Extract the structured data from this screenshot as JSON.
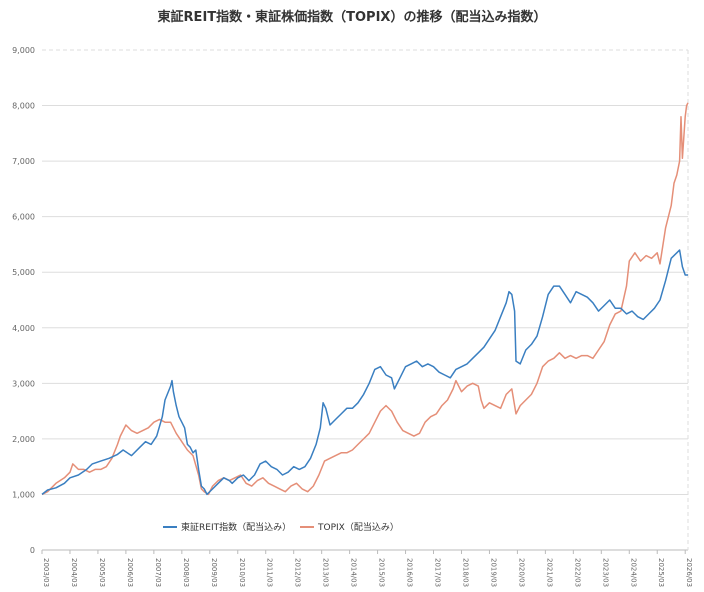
{
  "chart_data": {
    "type": "line",
    "title": "東証REIT指数・東証株価指数（TOPIX）の推移（配当込み指数）",
    "ylim": [
      0,
      9000
    ],
    "y_ticks": [
      "0",
      "1,000",
      "2,000",
      "3,000",
      "4,000",
      "5,000",
      "6,000",
      "7,000",
      "8,000",
      "9,000"
    ],
    "x_ticks": [
      "2003/03",
      "2004/03",
      "2005/03",
      "2006/03",
      "2007/03",
      "2008/03",
      "2009/03",
      "2010/03",
      "2011/03",
      "2012/03",
      "2013/03",
      "2014/03",
      "2015/03",
      "2016/03",
      "2017/03",
      "2018/03",
      "2019/03",
      "2020/03",
      "2021/03",
      "2022/03",
      "2023/03",
      "2024/03",
      "2025/03",
      "2026/03"
    ],
    "grid": true,
    "legend_position": "bottom-center",
    "series": [
      {
        "name": "東証REIT指数（配当込み）",
        "color": "#3a7fc1",
        "points": [
          [
            2003.2,
            1000
          ],
          [
            2003.4,
            1080
          ],
          [
            2003.7,
            1120
          ],
          [
            2004.0,
            1200
          ],
          [
            2004.2,
            1300
          ],
          [
            2004.5,
            1350
          ],
          [
            2004.8,
            1450
          ],
          [
            2005.0,
            1550
          ],
          [
            2005.3,
            1600
          ],
          [
            2005.6,
            1650
          ],
          [
            2005.9,
            1720
          ],
          [
            2006.1,
            1800
          ],
          [
            2006.4,
            1700
          ],
          [
            2006.7,
            1850
          ],
          [
            2006.9,
            1950
          ],
          [
            2007.1,
            1900
          ],
          [
            2007.3,
            2050
          ],
          [
            2007.5,
            2400
          ],
          [
            2007.6,
            2700
          ],
          [
            2007.8,
            2950
          ],
          [
            2007.85,
            3050
          ],
          [
            2007.9,
            2850
          ],
          [
            2008.0,
            2600
          ],
          [
            2008.1,
            2400
          ],
          [
            2008.2,
            2300
          ],
          [
            2008.3,
            2200
          ],
          [
            2008.4,
            1900
          ],
          [
            2008.5,
            1850
          ],
          [
            2008.6,
            1750
          ],
          [
            2008.7,
            1800
          ],
          [
            2008.8,
            1450
          ],
          [
            2008.9,
            1150
          ],
          [
            2009.0,
            1100
          ],
          [
            2009.1,
            1000
          ],
          [
            2009.3,
            1100
          ],
          [
            2009.5,
            1200
          ],
          [
            2009.7,
            1300
          ],
          [
            2009.9,
            1250
          ],
          [
            2010.0,
            1200
          ],
          [
            2010.2,
            1300
          ],
          [
            2010.4,
            1350
          ],
          [
            2010.6,
            1250
          ],
          [
            2010.8,
            1350
          ],
          [
            2011.0,
            1550
          ],
          [
            2011.2,
            1600
          ],
          [
            2011.4,
            1500
          ],
          [
            2011.6,
            1450
          ],
          [
            2011.8,
            1350
          ],
          [
            2012.0,
            1400
          ],
          [
            2012.2,
            1500
          ],
          [
            2012.4,
            1450
          ],
          [
            2012.6,
            1500
          ],
          [
            2012.8,
            1650
          ],
          [
            2013.0,
            1900
          ],
          [
            2013.15,
            2200
          ],
          [
            2013.25,
            2650
          ],
          [
            2013.35,
            2550
          ],
          [
            2013.5,
            2250
          ],
          [
            2013.7,
            2350
          ],
          [
            2013.9,
            2450
          ],
          [
            2014.1,
            2550
          ],
          [
            2014.3,
            2550
          ],
          [
            2014.5,
            2650
          ],
          [
            2014.7,
            2800
          ],
          [
            2014.9,
            3000
          ],
          [
            2015.1,
            3250
          ],
          [
            2015.3,
            3300
          ],
          [
            2015.5,
            3150
          ],
          [
            2015.7,
            3100
          ],
          [
            2015.8,
            2900
          ],
          [
            2016.0,
            3100
          ],
          [
            2016.2,
            3300
          ],
          [
            2016.4,
            3350
          ],
          [
            2016.6,
            3400
          ],
          [
            2016.8,
            3300
          ],
          [
            2017.0,
            3350
          ],
          [
            2017.2,
            3300
          ],
          [
            2017.4,
            3200
          ],
          [
            2017.6,
            3150
          ],
          [
            2017.8,
            3100
          ],
          [
            2018.0,
            3250
          ],
          [
            2018.2,
            3300
          ],
          [
            2018.4,
            3350
          ],
          [
            2018.6,
            3450
          ],
          [
            2018.8,
            3550
          ],
          [
            2019.0,
            3650
          ],
          [
            2019.2,
            3800
          ],
          [
            2019.4,
            3950
          ],
          [
            2019.6,
            4200
          ],
          [
            2019.8,
            4450
          ],
          [
            2019.9,
            4650
          ],
          [
            2020.0,
            4600
          ],
          [
            2020.1,
            4300
          ],
          [
            2020.15,
            3400
          ],
          [
            2020.3,
            3350
          ],
          [
            2020.5,
            3600
          ],
          [
            2020.7,
            3700
          ],
          [
            2020.9,
            3850
          ],
          [
            2021.1,
            4200
          ],
          [
            2021.3,
            4600
          ],
          [
            2021.5,
            4750
          ],
          [
            2021.7,
            4750
          ],
          [
            2021.9,
            4600
          ],
          [
            2022.1,
            4450
          ],
          [
            2022.3,
            4650
          ],
          [
            2022.5,
            4600
          ],
          [
            2022.7,
            4550
          ],
          [
            2022.9,
            4450
          ],
          [
            2023.1,
            4300
          ],
          [
            2023.3,
            4400
          ],
          [
            2023.5,
            4500
          ],
          [
            2023.7,
            4350
          ],
          [
            2023.9,
            4350
          ],
          [
            2024.1,
            4250
          ],
          [
            2024.3,
            4300
          ],
          [
            2024.5,
            4200
          ],
          [
            2024.7,
            4150
          ],
          [
            2024.9,
            4250
          ],
          [
            2025.1,
            4350
          ],
          [
            2025.3,
            4500
          ],
          [
            2025.5,
            4850
          ],
          [
            2025.7,
            5250
          ],
          [
            2025.9,
            5350
          ],
          [
            2026.0,
            5400
          ],
          [
            2026.1,
            5100
          ],
          [
            2026.2,
            4950
          ],
          [
            2026.3,
            4950
          ]
        ]
      },
      {
        "name": "TOPIX（配当込み）",
        "color": "#e58f78",
        "points": [
          [
            2003.2,
            1000
          ],
          [
            2003.4,
            1050
          ],
          [
            2003.7,
            1200
          ],
          [
            2004.0,
            1300
          ],
          [
            2004.2,
            1400
          ],
          [
            2004.3,
            1550
          ],
          [
            2004.5,
            1450
          ],
          [
            2004.7,
            1450
          ],
          [
            2004.9,
            1400
          ],
          [
            2005.1,
            1450
          ],
          [
            2005.3,
            1450
          ],
          [
            2005.5,
            1500
          ],
          [
            2005.7,
            1650
          ],
          [
            2005.9,
            1900
          ],
          [
            2006.0,
            2050
          ],
          [
            2006.2,
            2250
          ],
          [
            2006.4,
            2150
          ],
          [
            2006.6,
            2100
          ],
          [
            2006.8,
            2150
          ],
          [
            2007.0,
            2200
          ],
          [
            2007.2,
            2300
          ],
          [
            2007.4,
            2350
          ],
          [
            2007.6,
            2300
          ],
          [
            2007.8,
            2300
          ],
          [
            2008.0,
            2100
          ],
          [
            2008.2,
            1950
          ],
          [
            2008.4,
            1800
          ],
          [
            2008.6,
            1700
          ],
          [
            2008.8,
            1350
          ],
          [
            2008.9,
            1100
          ],
          [
            2009.0,
            1050
          ],
          [
            2009.15,
            1000
          ],
          [
            2009.3,
            1150
          ],
          [
            2009.5,
            1250
          ],
          [
            2009.7,
            1300
          ],
          [
            2009.9,
            1250
          ],
          [
            2010.1,
            1300
          ],
          [
            2010.3,
            1350
          ],
          [
            2010.5,
            1200
          ],
          [
            2010.7,
            1150
          ],
          [
            2010.9,
            1250
          ],
          [
            2011.1,
            1300
          ],
          [
            2011.3,
            1200
          ],
          [
            2011.5,
            1150
          ],
          [
            2011.7,
            1100
          ],
          [
            2011.9,
            1050
          ],
          [
            2012.1,
            1150
          ],
          [
            2012.3,
            1200
          ],
          [
            2012.5,
            1100
          ],
          [
            2012.7,
            1050
          ],
          [
            2012.9,
            1150
          ],
          [
            2013.1,
            1350
          ],
          [
            2013.3,
            1600
          ],
          [
            2013.5,
            1650
          ],
          [
            2013.7,
            1700
          ],
          [
            2013.9,
            1750
          ],
          [
            2014.1,
            1750
          ],
          [
            2014.3,
            1800
          ],
          [
            2014.5,
            1900
          ],
          [
            2014.7,
            2000
          ],
          [
            2014.9,
            2100
          ],
          [
            2015.1,
            2300
          ],
          [
            2015.3,
            2500
          ],
          [
            2015.5,
            2600
          ],
          [
            2015.7,
            2500
          ],
          [
            2015.9,
            2300
          ],
          [
            2016.1,
            2150
          ],
          [
            2016.3,
            2100
          ],
          [
            2016.5,
            2050
          ],
          [
            2016.7,
            2100
          ],
          [
            2016.9,
            2300
          ],
          [
            2017.1,
            2400
          ],
          [
            2017.3,
            2450
          ],
          [
            2017.5,
            2600
          ],
          [
            2017.7,
            2700
          ],
          [
            2017.9,
            2900
          ],
          [
            2018.0,
            3050
          ],
          [
            2018.2,
            2850
          ],
          [
            2018.4,
            2950
          ],
          [
            2018.6,
            3000
          ],
          [
            2018.8,
            2950
          ],
          [
            2018.9,
            2700
          ],
          [
            2019.0,
            2550
          ],
          [
            2019.2,
            2650
          ],
          [
            2019.4,
            2600
          ],
          [
            2019.6,
            2550
          ],
          [
            2019.8,
            2800
          ],
          [
            2020.0,
            2900
          ],
          [
            2020.15,
            2450
          ],
          [
            2020.3,
            2600
          ],
          [
            2020.5,
            2700
          ],
          [
            2020.7,
            2800
          ],
          [
            2020.9,
            3000
          ],
          [
            2021.1,
            3300
          ],
          [
            2021.3,
            3400
          ],
          [
            2021.5,
            3450
          ],
          [
            2021.7,
            3550
          ],
          [
            2021.9,
            3450
          ],
          [
            2022.1,
            3500
          ],
          [
            2022.3,
            3450
          ],
          [
            2022.5,
            3500
          ],
          [
            2022.7,
            3500
          ],
          [
            2022.9,
            3450
          ],
          [
            2023.1,
            3600
          ],
          [
            2023.3,
            3750
          ],
          [
            2023.5,
            4050
          ],
          [
            2023.7,
            4250
          ],
          [
            2023.9,
            4300
          ],
          [
            2024.1,
            4750
          ],
          [
            2024.2,
            5200
          ],
          [
            2024.4,
            5350
          ],
          [
            2024.6,
            5200
          ],
          [
            2024.8,
            5300
          ],
          [
            2025.0,
            5250
          ],
          [
            2025.2,
            5350
          ],
          [
            2025.3,
            5150
          ],
          [
            2025.5,
            5800
          ],
          [
            2025.7,
            6200
          ],
          [
            2025.8,
            6600
          ],
          [
            2025.9,
            6750
          ],
          [
            2026.0,
            7000
          ],
          [
            2026.05,
            7800
          ],
          [
            2026.1,
            7050
          ],
          [
            2026.2,
            7800
          ],
          [
            2026.25,
            8000
          ],
          [
            2026.3,
            8050
          ]
        ]
      }
    ]
  }
}
